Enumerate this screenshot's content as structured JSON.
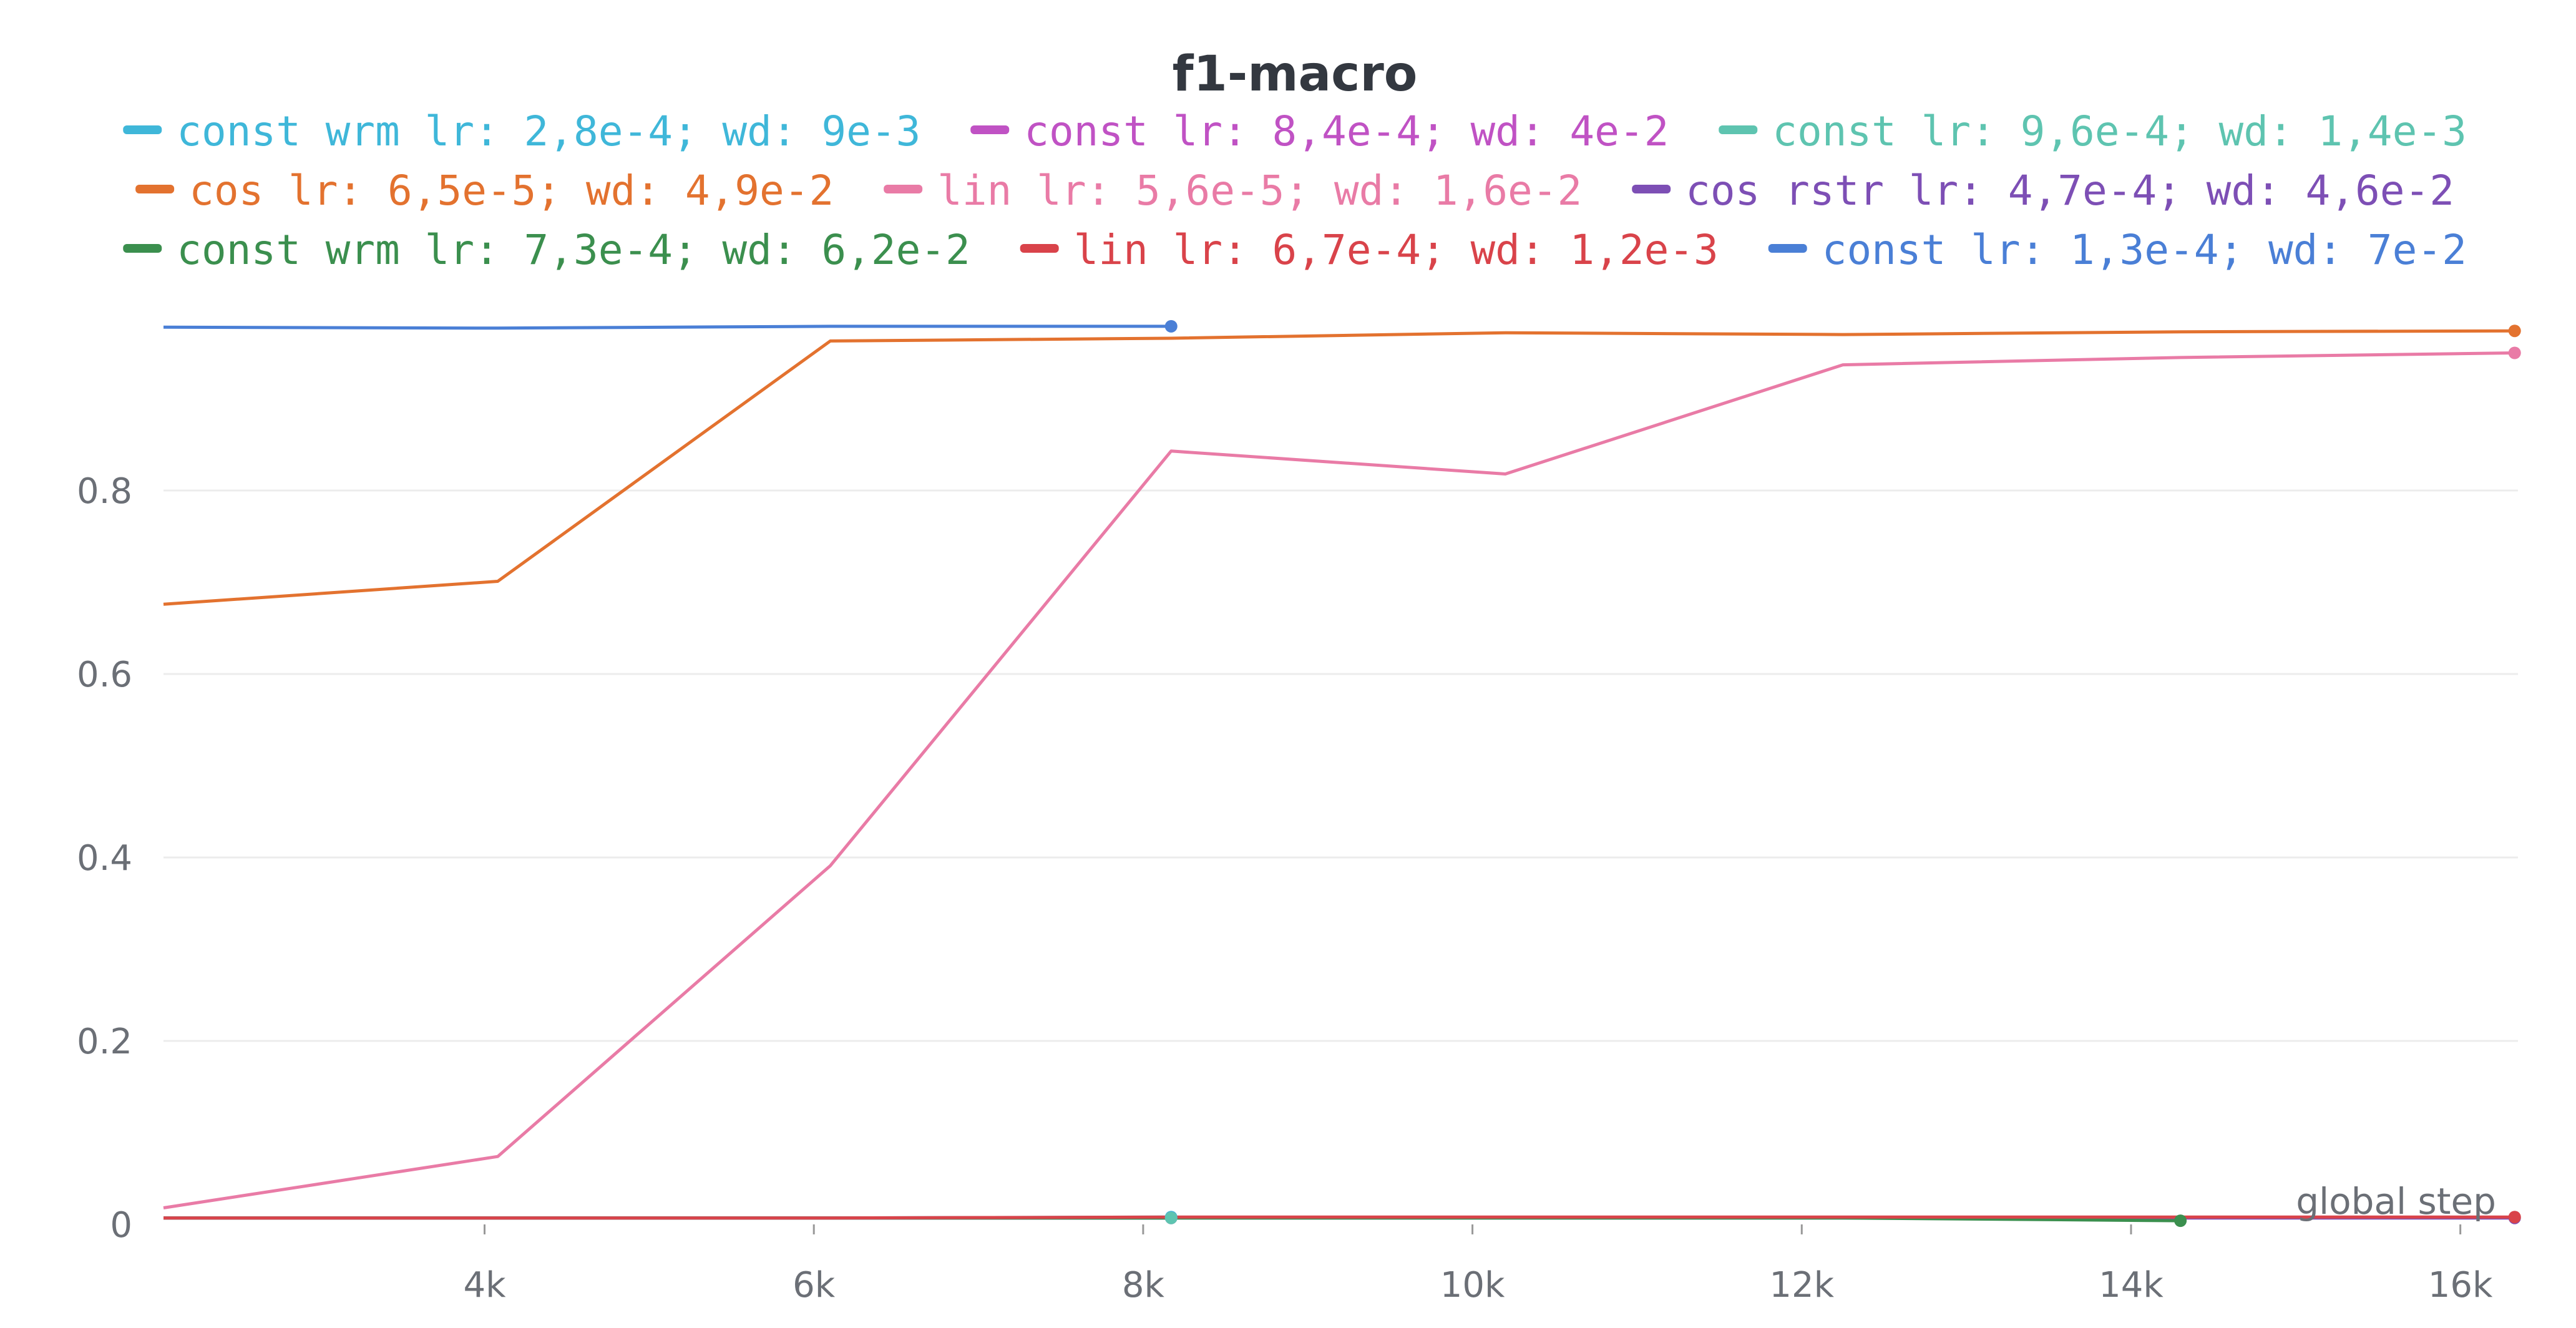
{
  "chart_data": {
    "type": "line",
    "title": "f1-macro",
    "xlabel": "global step",
    "ylabel": "",
    "xlim": [
      2050,
      16350
    ],
    "ylim": [
      0,
      1.0
    ],
    "x_ticks": [
      {
        "value": 4000,
        "label": "4k"
      },
      {
        "value": 6000,
        "label": "6k"
      },
      {
        "value": 8000,
        "label": "8k"
      },
      {
        "value": 10000,
        "label": "10k"
      },
      {
        "value": 12000,
        "label": "12k"
      },
      {
        "value": 14000,
        "label": "14k"
      },
      {
        "value": 16000,
        "label": "16k"
      }
    ],
    "y_ticks": [
      {
        "value": 0,
        "label": "0"
      },
      {
        "value": 0.2,
        "label": "0.2"
      },
      {
        "value": 0.4,
        "label": "0.4"
      },
      {
        "value": 0.6,
        "label": "0.6"
      },
      {
        "value": 0.8,
        "label": "0.8"
      }
    ],
    "grid": true,
    "legend_position": "top",
    "series": [
      {
        "name": "const wrm lr: 2,8e-4; wd: 9e-3",
        "color": "#3fb7d9",
        "legend_row": 0,
        "x": [
          2050,
          4080,
          6100,
          8170
        ],
        "y": [
          0.007,
          0.007,
          0.007,
          0.008
        ]
      },
      {
        "name": "const lr: 8,4e-4; wd: 4e-2",
        "color": "#c052c4",
        "legend_row": 0,
        "x": [
          2050,
          4080,
          6100,
          8170
        ],
        "y": [
          0.007,
          0.007,
          0.007,
          0.007
        ]
      },
      {
        "name": "const lr: 9,6e-4; wd: 1,4e-3",
        "color": "#5ec4b0",
        "legend_row": 0,
        "x": [
          2050,
          4080,
          6100,
          8170
        ],
        "y": [
          0.007,
          0.007,
          0.007,
          0.007
        ]
      },
      {
        "name": "cos lr: 6,5e-5; wd: 4,9e-2",
        "color": "#e3722f",
        "legend_row": 1,
        "x": [
          2050,
          4080,
          6100,
          8170,
          10200,
          12250,
          14300,
          16330
        ],
        "y": [
          0.676,
          0.701,
          0.963,
          0.966,
          0.972,
          0.97,
          0.973,
          0.974
        ]
      },
      {
        "name": "lin lr: 5,6e-5; wd: 1,6e-2",
        "color": "#e97ba6",
        "legend_row": 1,
        "x": [
          2050,
          4080,
          6100,
          8170,
          10200,
          12250,
          14300,
          16330
        ],
        "y": [
          0.018,
          0.074,
          0.391,
          0.843,
          0.818,
          0.937,
          0.945,
          0.95
        ]
      },
      {
        "name": "cos rstr lr: 4,7e-4; wd: 4,6e-2",
        "color": "#7d4fb5",
        "legend_row": 1,
        "x": [
          2050,
          4080,
          6100,
          8170,
          10200,
          12250,
          14300,
          16330
        ],
        "y": [
          0.007,
          0.007,
          0.007,
          0.007,
          0.007,
          0.007,
          0.007,
          0.007
        ]
      },
      {
        "name": "const wrm lr: 7,3e-4; wd: 6,2e-2",
        "color": "#3b8f4e",
        "legend_row": 2,
        "x": [
          2050,
          4080,
          6100,
          8170,
          10200,
          12250,
          14300
        ],
        "y": [
          0.007,
          0.007,
          0.007,
          0.007,
          0.007,
          0.007,
          0.004
        ]
      },
      {
        "name": "lin lr: 6,7e-4; wd: 1,2e-3",
        "color": "#d9434a",
        "legend_row": 2,
        "x": [
          2050,
          4080,
          6100,
          8170,
          10200,
          12250,
          14300,
          16330
        ],
        "y": [
          0.007,
          0.007,
          0.007,
          0.008,
          0.008,
          0.008,
          0.008,
          0.008
        ]
      },
      {
        "name": "const lr: 1,3e-4; wd: 7e-2",
        "color": "#4a7fd6",
        "legend_row": 2,
        "x": [
          2050,
          4080,
          6100,
          8170
        ],
        "y": [
          0.978,
          0.977,
          0.979,
          0.979
        ]
      }
    ]
  }
}
